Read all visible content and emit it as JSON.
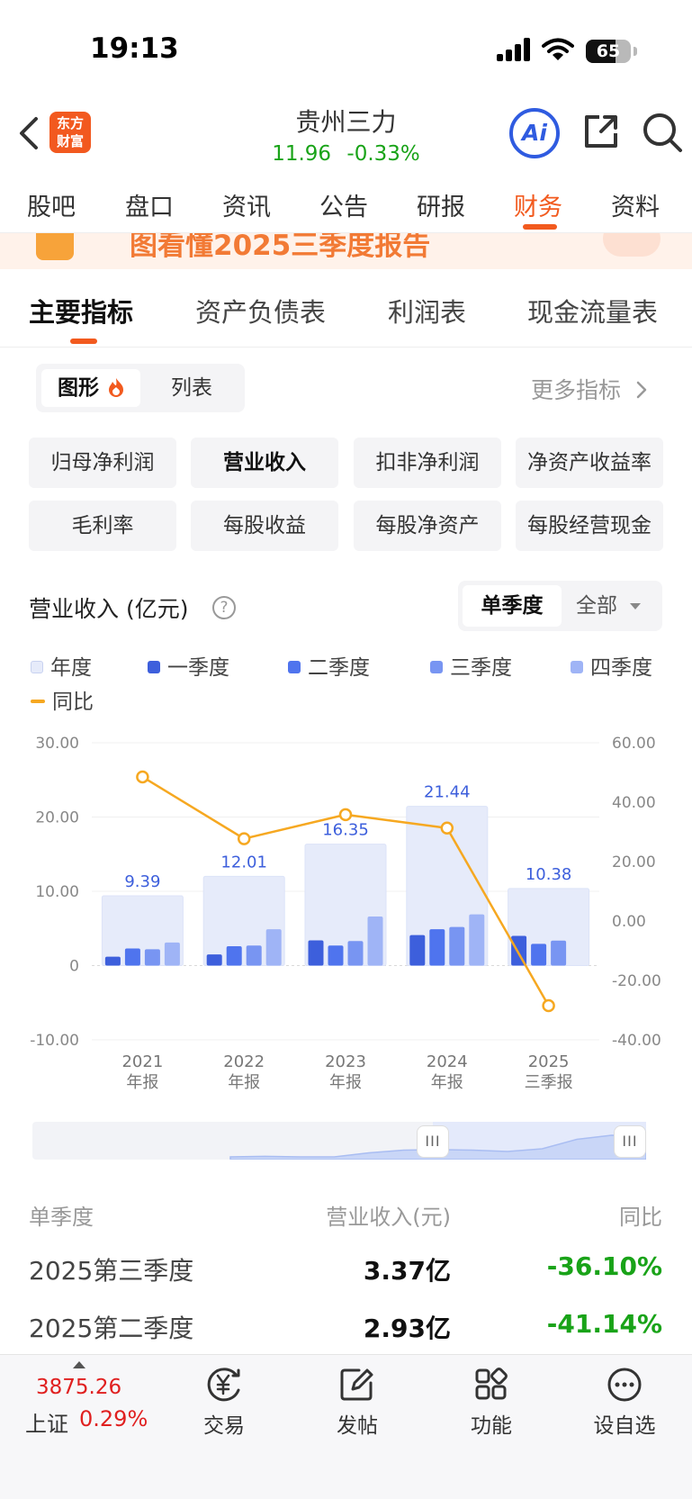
{
  "status_bar": {
    "time": "19:13",
    "battery": "65",
    "battery_level": 0.65
  },
  "header": {
    "logo_text": "东方\n财富",
    "title": "贵州三力",
    "price": "11.96",
    "change": "-0.33%",
    "ai_label": "Ai"
  },
  "top_tabs": [
    {
      "label": "股吧"
    },
    {
      "label": "盘口"
    },
    {
      "label": "资讯"
    },
    {
      "label": "公告"
    },
    {
      "label": "研报"
    },
    {
      "label": "财务",
      "active": true
    },
    {
      "label": "资料"
    }
  ],
  "banner": {
    "text": "图看懂2025三季度报告"
  },
  "section_tabs": [
    {
      "label": "主要指标",
      "active": true
    },
    {
      "label": "资产负债表"
    },
    {
      "label": "利润表"
    },
    {
      "label": "现金流量表"
    }
  ],
  "view_toggle": {
    "chart": "图形",
    "list": "列表"
  },
  "more_metrics": "更多指标",
  "metrics": [
    {
      "label": "归母净利润"
    },
    {
      "label": "营业收入",
      "active": true
    },
    {
      "label": "扣非净利润"
    },
    {
      "label": "净资产收益率"
    },
    {
      "label": "毛利率"
    },
    {
      "label": "每股收益"
    },
    {
      "label": "每股净资产"
    },
    {
      "label": "每股经营现金"
    }
  ],
  "chart_header": {
    "title": "营业收入 (亿元)",
    "help": "?",
    "period_single": "单季度",
    "period_all": "全部"
  },
  "legend": [
    {
      "label": "年度",
      "color": "#e6ebfa"
    },
    {
      "label": "一季度",
      "color": "#3d5fdc"
    },
    {
      "label": "二季度",
      "color": "#4f74ee"
    },
    {
      "label": "三季度",
      "color": "#7895f2"
    },
    {
      "label": "四季度",
      "color": "#9fb4f6"
    },
    {
      "label": "同比",
      "color": "#f6a821"
    }
  ],
  "chart_data": {
    "type": "bar",
    "categories": [
      "2021\n年报",
      "2022\n年报",
      "2023\n年报",
      "2024\n年报",
      "2025\n三季报"
    ],
    "annual": [
      9.39,
      12.01,
      16.35,
      21.44,
      10.38
    ],
    "annual_labels": [
      "9.39",
      "12.01",
      "16.35",
      "21.44",
      "10.38"
    ],
    "series": [
      {
        "name": "一季度",
        "values": [
          1.2,
          1.5,
          3.4,
          4.1,
          4.0
        ]
      },
      {
        "name": "二季度",
        "values": [
          2.3,
          2.6,
          2.7,
          4.9,
          2.93
        ]
      },
      {
        "name": "三季度",
        "values": [
          2.2,
          2.7,
          3.3,
          5.2,
          3.37
        ]
      },
      {
        "name": "四季度",
        "values": [
          3.1,
          4.9,
          6.6,
          6.9,
          null
        ]
      }
    ],
    "yoy": {
      "name": "同比",
      "values": [
        48.5,
        27.7,
        35.8,
        31.3,
        -28.5
      ]
    },
    "left_axis": {
      "ylim": [
        -10,
        30
      ],
      "ticks": [
        "30.00",
        "20.00",
        "10.00",
        "0",
        "-10.00"
      ],
      "values": [
        30,
        20,
        10,
        0,
        -10
      ]
    },
    "right_axis": {
      "ylim": [
        -40,
        60
      ],
      "ticks": [
        "60.00",
        "40.00",
        "20.00",
        "0.00",
        "-20.00",
        "-40.00"
      ],
      "values": [
        60,
        40,
        20,
        0,
        -20,
        -40
      ]
    },
    "grid": true
  },
  "navigator": {
    "handle_glyph": "III",
    "overview": [
      0.1,
      0.12,
      0.1,
      0.1,
      0.25,
      0.35,
      0.37,
      0.35,
      0.3,
      0.4,
      0.75,
      0.9,
      0.88
    ]
  },
  "table": {
    "headers": {
      "period": "单季度",
      "value": "营业收入(元)",
      "yoy": "同比"
    },
    "rows": [
      {
        "period": "2025第三季度",
        "value": "3.37亿",
        "yoy": "-36.10%"
      },
      {
        "period": "2025第二季度",
        "value": "2.93亿",
        "yoy": "-41.14%"
      }
    ]
  },
  "bottom_bar": {
    "index_value": "3875.26",
    "index_name": "上证",
    "index_change": "0.29%",
    "items": [
      {
        "label": "交易",
        "icon": "yen-exchange-icon"
      },
      {
        "label": "发帖",
        "icon": "edit-post-icon"
      },
      {
        "label": "功能",
        "icon": "apps-grid-icon"
      },
      {
        "label": "设自选",
        "icon": "more-circle-icon"
      }
    ]
  }
}
